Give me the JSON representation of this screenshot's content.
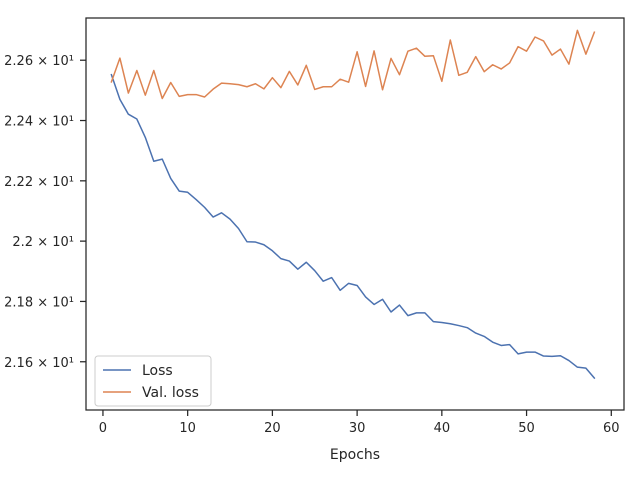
{
  "chart_data": {
    "type": "line",
    "title": "",
    "xlabel": "Epochs",
    "ylabel": "",
    "xlim": [
      -2,
      61.5
    ],
    "ylim": [
      21.44,
      22.74
    ],
    "grid": false,
    "legend_position": "lower-left",
    "x_ticks": [
      0,
      10,
      20,
      30,
      40,
      50,
      60
    ],
    "x_tick_labels": [
      "0",
      "10",
      "20",
      "30",
      "40",
      "50",
      "60"
    ],
    "y_ticks": [
      21.6,
      21.8,
      22.0,
      22.2,
      22.4,
      22.6
    ],
    "y_tick_labels": [
      "2.16 × 10¹",
      "2.18 × 10¹",
      "2.2 × 10¹",
      "2.22 × 10¹",
      "2.24 × 10¹",
      "2.26 × 10¹"
    ],
    "series": [
      {
        "name": "Loss",
        "color": "#4c72b0",
        "x": [
          1,
          2,
          3,
          4,
          5,
          6,
          7,
          8,
          9,
          10,
          11,
          12,
          13,
          14,
          15,
          16,
          17,
          18,
          19,
          20,
          21,
          22,
          23,
          24,
          25,
          26,
          27,
          28,
          29,
          30,
          31,
          32,
          33,
          34,
          35,
          36,
          37,
          38,
          39,
          40,
          41,
          42,
          43,
          44,
          45,
          46,
          47,
          48,
          49,
          50,
          51,
          52,
          53,
          54,
          55,
          56,
          57,
          58
        ],
        "values": [
          22.552,
          22.47,
          22.421,
          22.405,
          22.344,
          22.265,
          22.272,
          22.208,
          22.166,
          22.162,
          22.138,
          22.112,
          22.08,
          22.094,
          22.073,
          22.042,
          21.998,
          21.997,
          21.988,
          21.968,
          21.942,
          21.934,
          21.907,
          21.93,
          21.902,
          21.867,
          21.879,
          21.837,
          21.86,
          21.853,
          21.815,
          21.79,
          21.807,
          21.765,
          21.788,
          21.753,
          21.762,
          21.762,
          21.733,
          21.73,
          21.726,
          21.72,
          21.713,
          21.695,
          21.684,
          21.665,
          21.654,
          21.657,
          21.626,
          21.632,
          21.632,
          21.619,
          21.618,
          21.62,
          21.604,
          21.582,
          21.579,
          21.546
        ]
      },
      {
        "name": "Val. loss",
        "color": "#dd8452",
        "x": [
          1,
          2,
          3,
          4,
          5,
          6,
          7,
          8,
          9,
          10,
          11,
          12,
          13,
          14,
          15,
          16,
          17,
          18,
          19,
          20,
          21,
          22,
          23,
          24,
          25,
          26,
          27,
          28,
          29,
          30,
          31,
          32,
          33,
          34,
          35,
          36,
          37,
          38,
          39,
          40,
          41,
          42,
          43,
          44,
          45,
          46,
          47,
          48,
          49,
          50,
          51,
          52,
          53,
          54,
          55,
          56,
          57,
          58
        ],
        "values": [
          22.528,
          22.607,
          22.491,
          22.566,
          22.484,
          22.566,
          22.473,
          22.526,
          22.48,
          22.486,
          22.486,
          22.478,
          22.504,
          22.524,
          22.522,
          22.519,
          22.512,
          22.522,
          22.505,
          22.542,
          22.509,
          22.563,
          22.518,
          22.583,
          22.503,
          22.512,
          22.512,
          22.537,
          22.527,
          22.628,
          22.513,
          22.631,
          22.502,
          22.606,
          22.552,
          22.63,
          22.64,
          22.613,
          22.615,
          22.53,
          22.667,
          22.55,
          22.56,
          22.612,
          22.562,
          22.585,
          22.571,
          22.591,
          22.645,
          22.63,
          22.677,
          22.664,
          22.617,
          22.637,
          22.587,
          22.699,
          22.62,
          22.693
        ]
      }
    ]
  }
}
